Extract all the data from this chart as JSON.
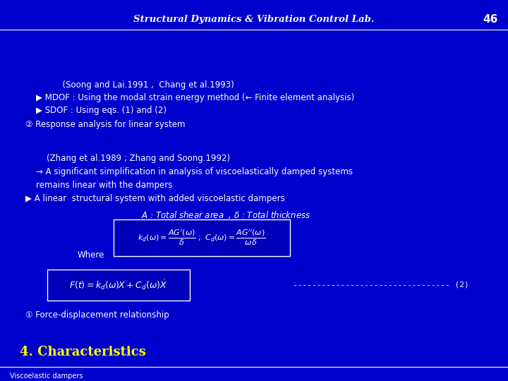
{
  "bg_color": "#0000CC",
  "title_color": "#FFFF00",
  "text_color": "#FFFFFF",
  "header_text": "Viscoelastic dampers",
  "section_title": "4. Characteristics",
  "footer_text": "Structural Dynamics & Vibration Control Lab.",
  "page_number": "46",
  "content": {
    "item1_label": "① Force-displacement relationship",
    "eq2_dashes": "--------------------------------- (2)",
    "where_label": "Where",
    "bullet1": "▶ A linear  structural system with added viscoelastic dampers",
    "bullet1b": "    remains linear with the dampers",
    "bullet2": "    → A significant simplification in analysis of viscoelastically damped systems",
    "bullet2b": "        (Zhang et al.1989 ; Zhang and Soong.1992)",
    "item2_label": "② Response analysis for linear system",
    "sdof": "    ▶ SDOF : Using eqs. (1) and (2)",
    "mdof": "    ▶ MDOF : Using the modal strain energy method (← Finite element analysis)",
    "mdof2": "              (Soong and Lai.1991 ,  Chang et al.1993)"
  }
}
